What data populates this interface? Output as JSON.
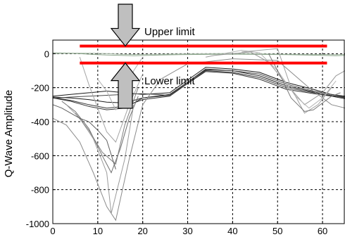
{
  "chart_data": {
    "type": "line",
    "ylabel": "Q-Wave Amplitude",
    "xlim": [
      0,
      65
    ],
    "ylim": [
      -1000,
      80
    ],
    "xticks": [
      0,
      10,
      20,
      30,
      40,
      50,
      60
    ],
    "yticks": [
      -1000,
      -800,
      -600,
      -400,
      -200,
      0
    ],
    "xtick_labels": [
      "0",
      "10",
      "20",
      "30",
      "40",
      "50",
      "60"
    ],
    "ytick_labels": [
      "-1000",
      "-800",
      "-600",
      "-400",
      "-200",
      "0"
    ],
    "grid": true,
    "limits": [
      {
        "name": "Upper limit",
        "y": 45,
        "x_range": [
          6,
          61
        ],
        "color": "#ff0000"
      },
      {
        "name": "Lower limit",
        "y": -55,
        "x_range": [
          6,
          61
        ],
        "color": "#ff0000"
      }
    ],
    "annotations": [
      {
        "text": "Upper limit",
        "arrow": "down"
      },
      {
        "text": "Lower limit",
        "arrow": "up"
      }
    ],
    "series": [
      {
        "x": [
          0,
          3,
          6,
          9,
          12,
          15,
          18,
          21,
          24,
          28,
          32,
          36,
          40,
          44,
          48,
          52,
          56,
          60,
          63,
          65
        ],
        "y": [
          0,
          2,
          0,
          -5,
          -8,
          -10,
          -12,
          -10,
          -8,
          -6,
          -5,
          -4,
          -3,
          -4,
          -5,
          -6,
          -8,
          -10,
          -12,
          -10
        ],
        "color": "#8fa88f"
      },
      {
        "x": [
          0,
          3,
          6,
          9,
          12,
          15,
          18,
          21,
          24,
          28,
          32,
          36,
          40,
          44,
          48,
          52,
          56,
          60,
          63,
          65
        ],
        "y": [
          5,
          4,
          3,
          2,
          0,
          -3,
          -5,
          -4,
          -3,
          -2,
          -1,
          0,
          1,
          0,
          -2,
          -3,
          -4,
          -5,
          -6,
          -5
        ],
        "color": "#a0b4a0"
      },
      {
        "x": [
          0,
          4,
          8,
          12,
          16,
          20,
          26,
          34,
          40,
          46,
          52,
          58,
          62,
          65
        ],
        "y": [
          -250,
          -240,
          -230,
          -220,
          -230,
          -240,
          -230,
          -80,
          -90,
          -110,
          -170,
          -210,
          -240,
          -250
        ],
        "color": "#1a1a1a"
      },
      {
        "x": [
          0,
          4,
          8,
          12,
          16,
          20,
          26,
          34,
          40,
          46,
          52,
          58,
          62,
          65
        ],
        "y": [
          -255,
          -260,
          -270,
          -285,
          -290,
          -260,
          -240,
          -95,
          -100,
          -130,
          -190,
          -225,
          -250,
          -255
        ],
        "color": "#1a1a1a"
      },
      {
        "x": [
          0,
          4,
          8,
          12,
          16,
          20,
          26,
          34,
          40,
          46,
          52,
          58,
          62,
          65
        ],
        "y": [
          -258,
          -275,
          -300,
          -320,
          -310,
          -270,
          -250,
          -100,
          -110,
          -140,
          -200,
          -230,
          -245,
          -260
        ],
        "color": "#333333"
      },
      {
        "x": [
          0,
          4,
          8,
          12,
          16,
          20,
          26,
          34,
          40,
          46,
          52,
          58,
          62,
          65
        ],
        "y": [
          -260,
          -280,
          -310,
          -330,
          -320,
          -260,
          -245,
          -105,
          -115,
          -150,
          -210,
          -235,
          -250,
          -265
        ],
        "color": "#333333"
      },
      {
        "x": [
          0,
          4,
          8,
          12,
          16,
          20,
          26,
          34,
          40,
          46,
          52,
          58,
          62,
          65
        ],
        "y": [
          -262,
          -255,
          -250,
          -245,
          -240,
          -235,
          -245,
          -90,
          -100,
          -120,
          -180,
          -220,
          -240,
          -255
        ],
        "color": "#4a4a4a"
      },
      {
        "x": [
          0,
          3,
          6,
          9,
          12,
          14,
          17,
          20,
          24,
          30,
          40,
          50,
          57,
          62,
          65
        ],
        "y": [
          -380,
          -420,
          -520,
          -700,
          -900,
          -980,
          -620,
          -300,
          -150,
          -60,
          -30,
          -40,
          -200,
          -300,
          -320
        ],
        "color": "#8a8a8a"
      },
      {
        "x": [
          2,
          5,
          8,
          11,
          13,
          15,
          17,
          19
        ],
        "y": [
          -280,
          -340,
          -440,
          -600,
          -700,
          -560,
          -380,
          -250
        ],
        "color": "#707070"
      },
      {
        "x": [
          3,
          6,
          9,
          12,
          13,
          16,
          18
        ],
        "y": [
          -300,
          -380,
          -500,
          -700,
          -940,
          -620,
          -300
        ],
        "color": "#9a9a9a"
      },
      {
        "x": [
          5,
          8,
          11,
          14,
          16,
          19
        ],
        "y": [
          -350,
          -450,
          -580,
          -650,
          -420,
          -200
        ],
        "color": "#808080"
      },
      {
        "x": [
          6,
          8,
          10,
          12,
          14,
          17,
          20
        ],
        "y": [
          -20,
          -180,
          -320,
          -460,
          -520,
          -300,
          -120
        ],
        "color": "#a5a5a5"
      },
      {
        "x": [
          0,
          2,
          4,
          6,
          8,
          10,
          12,
          14
        ],
        "y": [
          -300,
          -320,
          -350,
          -380,
          -400,
          -450,
          -510,
          -680
        ],
        "color": "#606060"
      },
      {
        "x": [
          10,
          12,
          14,
          16,
          18,
          20
        ],
        "y": [
          -150,
          -220,
          -330,
          -250,
          -100,
          -20
        ],
        "color": "#b0b0b0"
      },
      {
        "x": [
          34,
          36,
          40,
          44,
          48,
          52,
          56,
          60,
          63,
          65
        ],
        "y": [
          -20,
          -10,
          0,
          10,
          -50,
          -180,
          -300,
          -230,
          -130,
          -100
        ],
        "color": "#9a9a9a"
      },
      {
        "x": [
          38,
          42,
          46,
          50,
          54,
          57,
          60,
          63
        ],
        "y": [
          0,
          20,
          5,
          -100,
          -250,
          -320,
          -260,
          -160
        ],
        "color": "#b5b5b5"
      },
      {
        "x": [
          42,
          46,
          50,
          53,
          56,
          59,
          62
        ],
        "y": [
          10,
          20,
          30,
          -200,
          -350,
          -300,
          -200
        ],
        "color": "#a0a0a0"
      },
      {
        "x": [
          48,
          51,
          53,
          56,
          58,
          60,
          62,
          64
        ],
        "y": [
          0,
          -150,
          -260,
          -340,
          -330,
          -290,
          -250,
          -230
        ],
        "color": "#7a7a7a"
      }
    ]
  }
}
